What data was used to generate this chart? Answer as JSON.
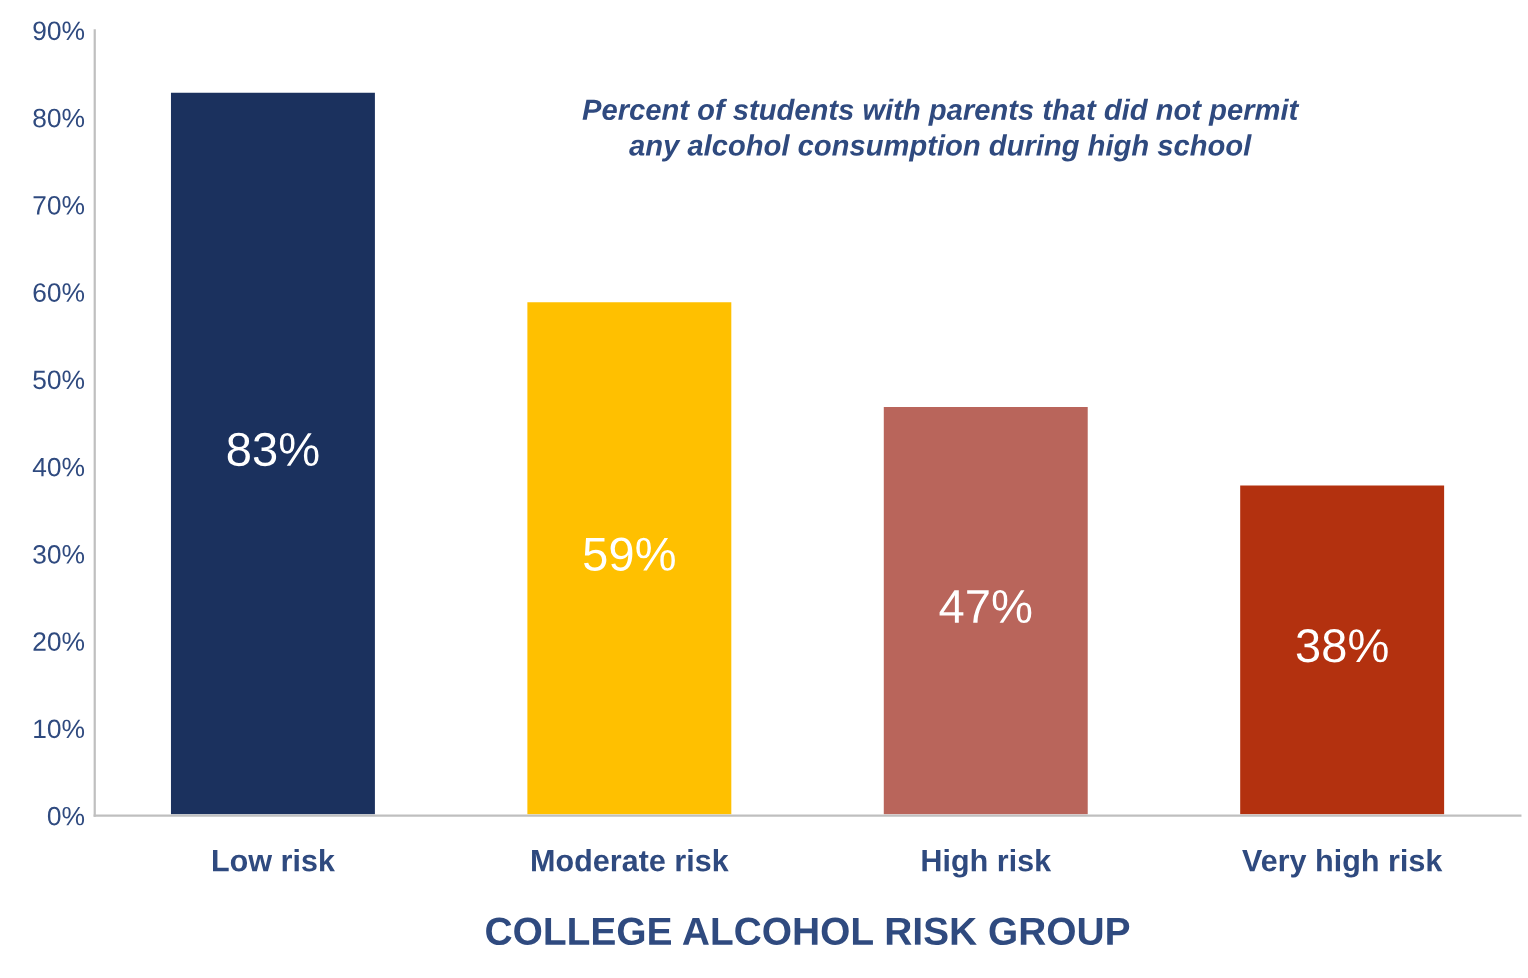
{
  "chart_data": {
    "type": "bar",
    "title": "Percent of students with parents that did not permit\nany alcohol consumption during high school",
    "xlabel": "COLLEGE ALCOHOL RISK GROUP",
    "categories": [
      "Low risk",
      "Moderate risk",
      "High risk",
      "Very high risk"
    ],
    "values": [
      83,
      59,
      47,
      38
    ],
    "colors": [
      "#1b315e",
      "#ffc000",
      "#b9655b",
      "#b3310f"
    ],
    "value_labels": [
      "83%",
      "59%",
      "47%",
      "38%"
    ],
    "ylim": [
      0,
      90
    ],
    "yticks": [
      {
        "value": 0,
        "label": "0%"
      },
      {
        "value": 10,
        "label": "10%"
      },
      {
        "value": 20,
        "label": "20%"
      },
      {
        "value": 30,
        "label": "30%"
      },
      {
        "value": 40,
        "label": "40%"
      },
      {
        "value": 50,
        "label": "50%"
      },
      {
        "value": 60,
        "label": "60%"
      },
      {
        "value": 70,
        "label": "70%"
      },
      {
        "value": 80,
        "label": "80%"
      },
      {
        "value": 90,
        "label": "90%"
      }
    ],
    "grid": false,
    "legend": false
  }
}
